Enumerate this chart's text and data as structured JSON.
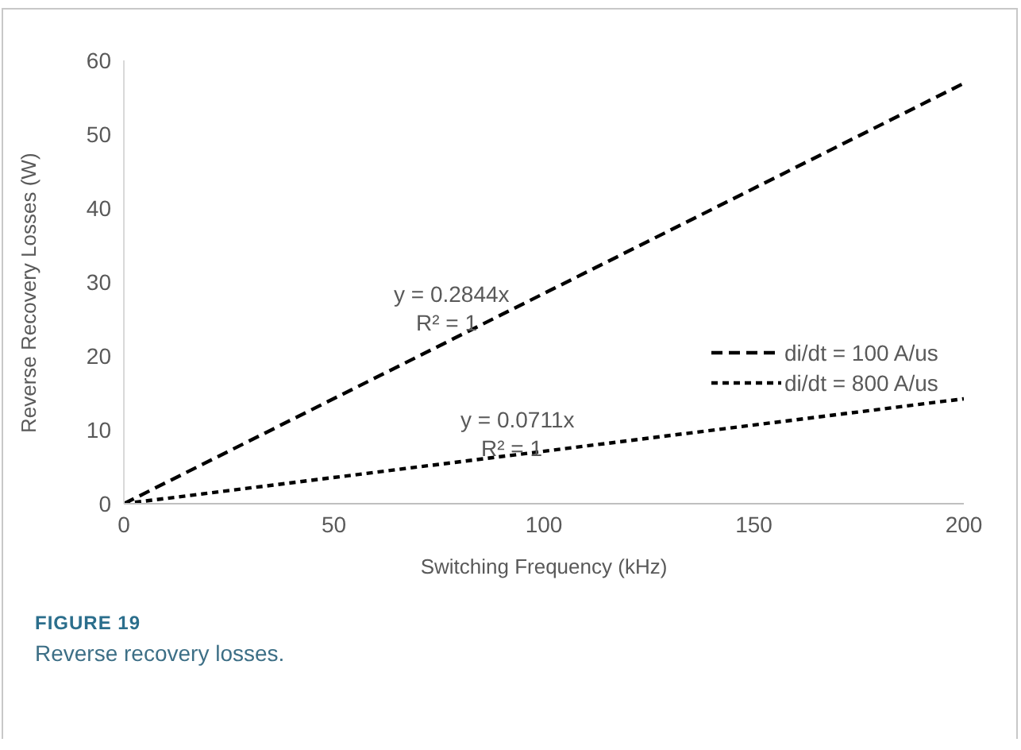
{
  "chart_data": {
    "type": "line",
    "title": "FIGURE 19",
    "subtitle": "Reverse recovery losses.",
    "xlabel": "Switching Frequency (kHz)",
    "ylabel": "Reverse Recovery Losses (W)",
    "x": [
      0,
      200
    ],
    "series": [
      {
        "name": "di/dt = 100 A/us",
        "color": "#000000",
        "values": [
          0,
          56.9
        ]
      },
      {
        "name": "di/dt = 800 A/us",
        "color": "#000000",
        "values": [
          0,
          14.2
        ]
      }
    ],
    "annotations": [
      "y = 0.2844x",
      "R² = 1",
      "y = 0.0711x",
      "R² = 1"
    ],
    "xlim": [
      0,
      200
    ],
    "xticks": [
      0,
      50,
      100,
      150,
      200
    ],
    "ylim": [
      0,
      60
    ],
    "yticks": [
      0,
      10,
      20,
      30,
      40,
      50,
      60
    ],
    "grid": false,
    "legend": "right",
    "marker": "none",
    "line_style": "dashed"
  }
}
